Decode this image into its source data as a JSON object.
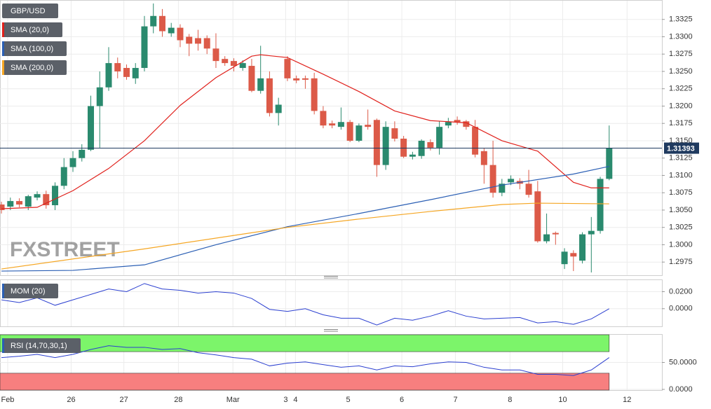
{
  "chart_data": [
    {
      "type": "candlestick",
      "title": "GBP/USD",
      "watermark": "FXSTREET",
      "up_color": "#2a8a6e",
      "down_color": "#dc5a48",
      "ohlc": [
        [
          1.3058,
          1.3062,
          1.3045,
          1.305
        ],
        [
          1.3055,
          1.3068,
          1.305,
          1.3063
        ],
        [
          1.3063,
          1.3067,
          1.3054,
          1.3058
        ],
        [
          1.3055,
          1.3072,
          1.305,
          1.307
        ],
        [
          1.3068,
          1.3077,
          1.3064,
          1.3073
        ],
        [
          1.3073,
          1.3078,
          1.3052,
          1.3057
        ],
        [
          1.3057,
          1.309,
          1.305,
          1.3085
        ],
        [
          1.3085,
          1.3125,
          1.308,
          1.3112
        ],
        [
          1.3112,
          1.3135,
          1.3105,
          1.3125
        ],
        [
          1.3125,
          1.3145,
          1.312,
          1.3137
        ],
        [
          1.3137,
          1.3215,
          1.3135,
          1.32
        ],
        [
          1.32,
          1.325,
          1.314,
          1.3227
        ],
        [
          1.3227,
          1.3285,
          1.3222,
          1.3262
        ],
        [
          1.3262,
          1.327,
          1.324,
          1.325
        ],
        [
          1.3255,
          1.326,
          1.3238,
          1.3242
        ],
        [
          1.324,
          1.3262,
          1.3232,
          1.3255
        ],
        [
          1.3255,
          1.333,
          1.325,
          1.3315
        ],
        [
          1.3315,
          1.3348,
          1.3305,
          1.333
        ],
        [
          1.333,
          1.334,
          1.33,
          1.3308
        ],
        [
          1.3305,
          1.332,
          1.33,
          1.3313
        ],
        [
          1.3313,
          1.3318,
          1.3285,
          1.3295
        ],
        [
          1.33,
          1.3304,
          1.3272,
          1.329
        ],
        [
          1.3298,
          1.331,
          1.328,
          1.329
        ],
        [
          1.3298,
          1.3302,
          1.3275,
          1.3283
        ],
        [
          1.3283,
          1.3305,
          1.3255,
          1.3265
        ],
        [
          1.3268,
          1.3272,
          1.3258,
          1.3262
        ],
        [
          1.3265,
          1.3269,
          1.325,
          1.3258
        ],
        [
          1.3255,
          1.3266,
          1.3251,
          1.3262
        ],
        [
          1.3258,
          1.3268,
          1.322,
          1.3222
        ],
        [
          1.3222,
          1.3287,
          1.3218,
          1.324
        ],
        [
          1.324,
          1.325,
          1.3185,
          1.319
        ],
        [
          1.319,
          1.3212,
          1.3172,
          1.3202
        ],
        [
          1.3268,
          1.3272,
          1.3236,
          1.324
        ],
        [
          1.324,
          1.3244,
          1.3233,
          1.3237
        ],
        [
          1.324,
          1.3244,
          1.3225,
          1.3238
        ],
        [
          1.324,
          1.3248,
          1.3188,
          1.3193
        ],
        [
          1.3193,
          1.32,
          1.3168,
          1.3172
        ],
        [
          1.3175,
          1.3179,
          1.3168,
          1.3172
        ],
        [
          1.317,
          1.3198,
          1.3166,
          1.3177
        ],
        [
          1.3177,
          1.318,
          1.3148,
          1.315
        ],
        [
          1.315,
          1.3175,
          1.3148,
          1.3172
        ],
        [
          1.3173,
          1.3195,
          1.3166,
          1.317
        ],
        [
          1.318,
          1.3182,
          1.3098,
          1.3115
        ],
        [
          1.3115,
          1.3178,
          1.3108,
          1.317
        ],
        [
          1.3168,
          1.3178,
          1.3149,
          1.3153
        ],
        [
          1.3153,
          1.3157,
          1.3125,
          1.3127
        ],
        [
          1.3127,
          1.3134,
          1.3123,
          1.313
        ],
        [
          1.3128,
          1.3152,
          1.3124,
          1.315
        ],
        [
          1.3148,
          1.3152,
          1.3136,
          1.314
        ],
        [
          1.314,
          1.3178,
          1.313,
          1.317
        ],
        [
          1.3172,
          1.3183,
          1.3168,
          1.3177
        ],
        [
          1.318,
          1.3185,
          1.3173,
          1.3177
        ],
        [
          1.3178,
          1.318,
          1.3166,
          1.317
        ],
        [
          1.317,
          1.318,
          1.3126,
          1.313
        ],
        [
          1.3135,
          1.3139,
          1.3088,
          1.3115
        ],
        [
          1.3115,
          1.315,
          1.3068,
          1.3075
        ],
        [
          1.3075,
          1.3095,
          1.307,
          1.3088
        ],
        [
          1.309,
          1.31,
          1.3086,
          1.3095
        ],
        [
          1.3092,
          1.3096,
          1.308,
          1.3088
        ],
        [
          1.3088,
          1.3108,
          1.3068,
          1.3072
        ],
        [
          1.3077,
          1.3092,
          1.3003,
          1.3005
        ],
        [
          1.3005,
          1.3045,
          1.3002,
          1.3015
        ],
        [
          1.3017,
          1.3019,
          1.3,
          1.3015
        ],
        [
          1.2972,
          1.2995,
          1.2965,
          1.299
        ],
        [
          1.2988,
          1.2992,
          1.2962,
          1.2983
        ],
        [
          1.2977,
          1.3018,
          1.2973,
          1.3015
        ],
        [
          1.3015,
          1.304,
          1.296,
          1.302
        ],
        [
          1.302,
          1.3098,
          1.3016,
          1.3095
        ],
        [
          1.3095,
          1.3172,
          1.3093,
          1.31393
        ]
      ],
      "series": [
        {
          "name": "SMA (20,0)",
          "color": "#e0201b",
          "x": [
            0,
            4,
            8,
            12,
            16,
            20,
            24,
            28,
            29,
            32,
            36,
            40,
            44,
            48,
            52,
            56,
            60,
            64,
            66,
            68
          ],
          "values": [
            1.3052,
            1.3054,
            1.3078,
            1.311,
            1.315,
            1.3201,
            1.3241,
            1.3272,
            1.3274,
            1.327,
            1.3246,
            1.3221,
            1.3193,
            1.3179,
            1.3176,
            1.315,
            1.3135,
            1.309,
            1.3082,
            1.3082
          ]
        },
        {
          "name": "SMA (100,0)",
          "color": "#2b5fb4",
          "x": [
            0,
            8,
            16,
            24,
            32,
            40,
            48,
            56,
            64,
            68
          ],
          "values": [
            1.2962,
            1.2963,
            1.2971,
            1.3,
            1.3026,
            1.3045,
            1.3065,
            1.3086,
            1.3102,
            1.3113
          ]
        },
        {
          "name": "SMA (200,0)",
          "color": "#f5a623",
          "x": [
            0,
            16,
            32,
            40,
            48,
            56,
            60,
            68
          ],
          "values": [
            1.2965,
            1.2994,
            1.3025,
            1.3037,
            1.3048,
            1.3058,
            1.306,
            1.3059
          ]
        }
      ],
      "xlim": [
        -0.16,
        73.9
      ],
      "xticks": [
        {
          "value": 0.7,
          "label": "Feb"
        },
        {
          "value": 7.8,
          "label": "26"
        },
        {
          "value": 13.7,
          "label": "27"
        },
        {
          "value": 19.8,
          "label": "28"
        },
        {
          "value": 25.9,
          "label": "Mar"
        },
        {
          "value": 31.8,
          "label": "3"
        },
        {
          "value": 32.9,
          "label": "4"
        },
        {
          "value": 38.8,
          "label": "5"
        },
        {
          "value": 44.8,
          "label": "6"
        },
        {
          "value": 50.8,
          "label": "7"
        },
        {
          "value": 56.9,
          "label": "8"
        },
        {
          "value": 62.8,
          "label": "10"
        },
        {
          "value": 70.0,
          "label": "12"
        }
      ],
      "ylim": [
        1.2956,
        1.3352
      ],
      "yticks": [
        {
          "value": 1.3325,
          "label": "1.3325"
        },
        {
          "value": 1.33,
          "label": "1.3300"
        },
        {
          "value": 1.3275,
          "label": "1.3275"
        },
        {
          "value": 1.325,
          "label": "1.3250"
        },
        {
          "value": 1.3225,
          "label": "1.3225"
        },
        {
          "value": 1.32,
          "label": "1.3200"
        },
        {
          "value": 1.3175,
          "label": "1.3175"
        },
        {
          "value": 1.315,
          "label": "1.3150"
        },
        {
          "value": 1.3125,
          "label": "1.3125"
        },
        {
          "value": 1.31,
          "label": "1.3100"
        },
        {
          "value": 1.3075,
          "label": "1.3075"
        },
        {
          "value": 1.305,
          "label": "1.3050"
        },
        {
          "value": 1.3025,
          "label": "1.3025"
        },
        {
          "value": 1.3,
          "label": "1.3000"
        },
        {
          "value": 1.2975,
          "label": "1.2975"
        }
      ],
      "grid": true
    },
    {
      "type": "line",
      "title": "MOM (20)",
      "color": "#2b3fd0",
      "x": [
        0,
        2,
        4,
        6,
        8,
        10,
        12,
        14,
        16,
        18,
        20,
        22,
        24,
        26,
        28,
        30,
        32,
        34,
        36,
        38,
        40,
        42,
        44,
        46,
        48,
        50,
        52,
        54,
        56,
        58,
        60,
        62,
        64,
        66,
        68
      ],
      "values": [
        0.0104,
        0.0072,
        0.0128,
        0.004,
        0.0104,
        0.0168,
        0.0232,
        0.02,
        0.0296,
        0.0232,
        0.0216,
        0.0184,
        0.02,
        0.0184,
        0.012,
        -0.0008,
        -0.0032,
        0,
        -0.0072,
        -0.0112,
        -0.0112,
        -0.0192,
        -0.0112,
        -0.0136,
        -0.0088,
        -0.0024,
        -0.0088,
        -0.012,
        -0.0112,
        -0.0104,
        -0.0168,
        -0.0152,
        -0.0184,
        -0.012,
        0
      ],
      "ylim": [
        -0.0208,
        0.0336
      ],
      "yticks": [
        {
          "value": 0.02,
          "label": "0.0200"
        },
        {
          "value": 0,
          "label": "0.0000"
        }
      ]
    },
    {
      "type": "line",
      "title": "RSI (14,70,30,1)",
      "color": "#2b3fd0",
      "x": [
        0,
        2,
        4,
        6,
        8,
        10,
        12,
        14,
        16,
        18,
        20,
        22,
        24,
        26,
        28,
        30,
        32,
        34,
        36,
        38,
        40,
        42,
        44,
        46,
        48,
        50,
        52,
        54,
        56,
        58,
        60,
        62,
        64,
        66,
        68
      ],
      "values": [
        59,
        61.5,
        65,
        59,
        65,
        74,
        81,
        78,
        78,
        74,
        75.6,
        68,
        64,
        59,
        56,
        43.6,
        48.7,
        51,
        46,
        41,
        43.6,
        36,
        43.6,
        42,
        47.4,
        51,
        50,
        41,
        36,
        36,
        28,
        28,
        25.6,
        36,
        59
      ],
      "upper": 70,
      "lower": 30,
      "upper_color": "#7cf56a",
      "lower_color": "#f77f7f",
      "ylim": [
        -1.3,
        101.3
      ],
      "yticks": [
        {
          "value": 50,
          "label": "50.0000"
        },
        {
          "value": 0,
          "label": "0.0000"
        }
      ]
    }
  ]
}
